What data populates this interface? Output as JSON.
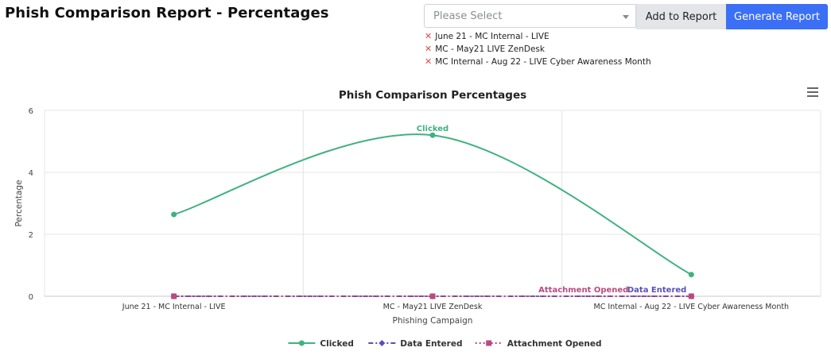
{
  "page": {
    "title": "Phish Comparison Report - Percentages"
  },
  "controls": {
    "select_placeholder": "Please Select",
    "add_button_label": "Add to Report",
    "generate_button_label": "Generate Report",
    "remove_icon": "✕",
    "selected_items": [
      "June 21 - MC Internal - LIVE",
      "MC - May21 LIVE ZenDesk",
      "MC Internal - Aug 22 - LIVE Cyber Awareness Month"
    ]
  },
  "chart_data": {
    "type": "line",
    "title": "Phish Comparison Percentages",
    "xlabel": "Phishing Campaign",
    "ylabel": "Percentage",
    "categories": [
      "June 21 - MC Internal - LIVE",
      "MC - May21 LIVE ZenDesk",
      "MC Internal - Aug 22 - LIVE Cyber Awareness Month"
    ],
    "ylim": [
      0,
      6
    ],
    "yticks": [
      0,
      2,
      4,
      6
    ],
    "grid": true,
    "legend_position": "bottom",
    "series": [
      {
        "name": "Clicked",
        "values": [
          2.64,
          5.2,
          0.7
        ],
        "color": "#3fb27f",
        "marker": "circle",
        "dash": "solid",
        "smooth": true
      },
      {
        "name": "Data Entered",
        "values": [
          0,
          0,
          0
        ],
        "color": "#5b4fb5",
        "marker": "diamond",
        "dash": "dashdot",
        "smooth": false
      },
      {
        "name": "Attachment Opened",
        "values": [
          0,
          0,
          0
        ],
        "color": "#b94a7f",
        "marker": "square",
        "dash": "dotted",
        "smooth": false
      }
    ],
    "annotations": [
      {
        "text": "Clicked",
        "series": 0,
        "point": 1,
        "color": "#3fb27f"
      },
      {
        "text": "Attachment Opened",
        "series": 2,
        "point": 2,
        "color": "#b94a7f"
      },
      {
        "text": "Data Entered",
        "series": 1,
        "point": 2,
        "color": "#5b4fb5"
      }
    ]
  }
}
